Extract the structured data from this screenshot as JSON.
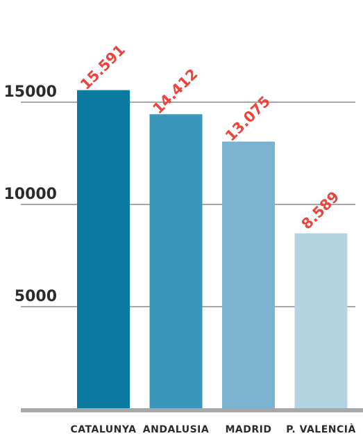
{
  "chart_data": {
    "type": "bar",
    "categories": [
      "CATALUNYA",
      "ANDALUSIA",
      "MADRID",
      "P. VALENCIÀ"
    ],
    "values": [
      15591,
      14412,
      13075,
      8589
    ],
    "value_labels": [
      "15.591",
      "14.412",
      "13.075",
      "8.589"
    ],
    "yticks": [
      5000,
      10000,
      15000
    ],
    "ytick_labels": [
      "5000",
      "10000",
      "15000"
    ],
    "ylim": [
      0,
      20000
    ],
    "title": "",
    "xlabel": "",
    "ylabel": "",
    "grid": true,
    "legend": "none",
    "colors": {
      "bars": [
        "#0b7aa0",
        "#3a97bb",
        "#7ab2cf",
        "#b4d4e4"
      ],
      "grid": "#a8a8a8",
      "baseline": "#a8a8a8",
      "data_label": "#e8463c"
    }
  }
}
